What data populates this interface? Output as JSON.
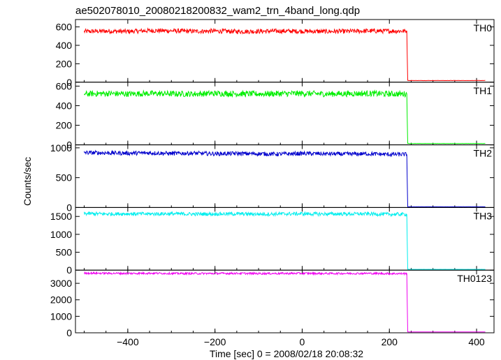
{
  "title": "ae502078010_20080218200832_wam2_trn_4band_long.qdp",
  "xlabel": "Time [sec] 0 = 2008/02/18 20:08:32",
  "ylabel": "Counts/sec",
  "chart_data": {
    "type": "line",
    "title": "ae502078010_20080218200832_wam2_trn_4band_long.qdp",
    "xlabel": "Time [sec] 0 = 2008/02/18 20:08:32",
    "ylabel": "Counts/sec",
    "xlim": [
      -520,
      440
    ],
    "xticks": [
      -400,
      -200,
      0,
      200,
      400
    ],
    "panels": [
      {
        "name": "TH0",
        "color": "#ff0000",
        "ylim": [
          0,
          680
        ],
        "yticks": [
          0,
          200,
          400,
          600
        ],
        "x": [
          -500,
          -450,
          -400,
          -350,
          -300,
          -250,
          -200,
          -150,
          -100,
          -50,
          0,
          50,
          100,
          150,
          200,
          240,
          242,
          245,
          300,
          350,
          400,
          420
        ],
        "y": [
          550,
          555,
          550,
          560,
          558,
          552,
          555,
          550,
          552,
          555,
          553,
          550,
          552,
          556,
          555,
          555,
          20,
          18,
          18,
          18,
          18,
          18
        ],
        "noise": 25
      },
      {
        "name": "TH1",
        "color": "#00ee00",
        "ylim": [
          0,
          640
        ],
        "yticks": [
          0,
          200,
          400,
          600
        ],
        "x": [
          -500,
          -450,
          -400,
          -350,
          -300,
          -250,
          -200,
          -150,
          -100,
          -50,
          0,
          50,
          100,
          150,
          200,
          240,
          242,
          245,
          300,
          350,
          400,
          420
        ],
        "y": [
          520,
          525,
          520,
          525,
          522,
          520,
          525,
          522,
          520,
          523,
          525,
          520,
          522,
          525,
          520,
          520,
          15,
          14,
          14,
          14,
          14,
          14
        ],
        "noise": 30
      },
      {
        "name": "TH2",
        "color": "#0000cc",
        "ylim": [
          0,
          1050
        ],
        "yticks": [
          0,
          500,
          1000
        ],
        "x": [
          -500,
          -450,
          -400,
          -350,
          -300,
          -250,
          -200,
          -150,
          -100,
          -50,
          0,
          50,
          100,
          150,
          200,
          240,
          242,
          245,
          300,
          350,
          400,
          420
        ],
        "y": [
          920,
          915,
          910,
          915,
          905,
          910,
          900,
          905,
          900,
          895,
          905,
          900,
          895,
          900,
          890,
          890,
          12,
          12,
          12,
          12,
          12,
          12
        ],
        "noise": 35
      },
      {
        "name": "TH3",
        "color": "#00eeee",
        "ylim": [
          0,
          1750
        ],
        "yticks": [
          0,
          500,
          1000,
          1500
        ],
        "x": [
          -500,
          -450,
          -400,
          -350,
          -300,
          -250,
          -200,
          -150,
          -100,
          -50,
          0,
          50,
          100,
          150,
          200,
          240,
          242,
          245,
          300,
          350,
          400,
          420
        ],
        "y": [
          1580,
          1570,
          1575,
          1570,
          1575,
          1565,
          1570,
          1572,
          1565,
          1570,
          1575,
          1568,
          1570,
          1572,
          1560,
          1560,
          25,
          22,
          22,
          22,
          22,
          22
        ],
        "noise": 50
      },
      {
        "name": "TH0123",
        "color": "#ee00ee",
        "ylim": [
          0,
          3800
        ],
        "yticks": [
          0,
          1000,
          2000,
          3000
        ],
        "x": [
          -500,
          -450,
          -400,
          -350,
          -300,
          -250,
          -200,
          -150,
          -100,
          -50,
          0,
          50,
          100,
          150,
          200,
          240,
          242,
          245,
          300,
          350,
          400,
          420
        ],
        "y": [
          3620,
          3610,
          3600,
          3615,
          3600,
          3595,
          3600,
          3605,
          3595,
          3600,
          3605,
          3598,
          3600,
          3605,
          3590,
          3590,
          60,
          55,
          55,
          55,
          55,
          55
        ],
        "noise": 60
      }
    ]
  }
}
